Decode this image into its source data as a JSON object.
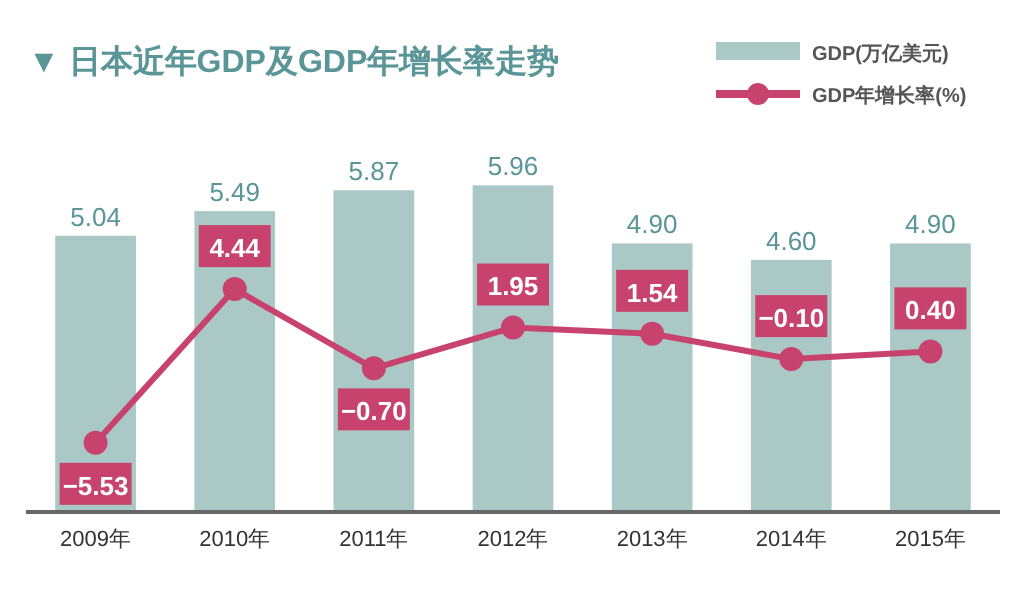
{
  "chart_data": {
    "type": "bar",
    "title": "▼ 日本近年GDP及GDP年增长率走势",
    "categories": [
      "2009年",
      "2010年",
      "2011年",
      "2012年",
      "2013年",
      "2014年",
      "2015年"
    ],
    "series": [
      {
        "name": "GDP(万亿美元)",
        "color": "#a9c8c6",
        "values": [
          5.04,
          5.49,
          5.87,
          5.96,
          4.9,
          4.6,
          4.9
        ],
        "value_labels": [
          "5.04",
          "5.49",
          "5.87",
          "5.96",
          "4.90",
          "4.60",
          "4.90"
        ]
      },
      {
        "name": "GDP年增长率(%)",
        "type": "line",
        "axis": "y2",
        "color": "#c8426e",
        "marker": "circle",
        "values": [
          -5.53,
          4.44,
          -0.7,
          1.95,
          1.54,
          -0.1,
          0.4
        ],
        "value_labels": [
          "−5.53",
          "4.44",
          "−0.70",
          "1.95",
          "1.54",
          "−0.10",
          "0.40"
        ]
      }
    ],
    "tick_labels": "x",
    "legend": "top right"
  }
}
